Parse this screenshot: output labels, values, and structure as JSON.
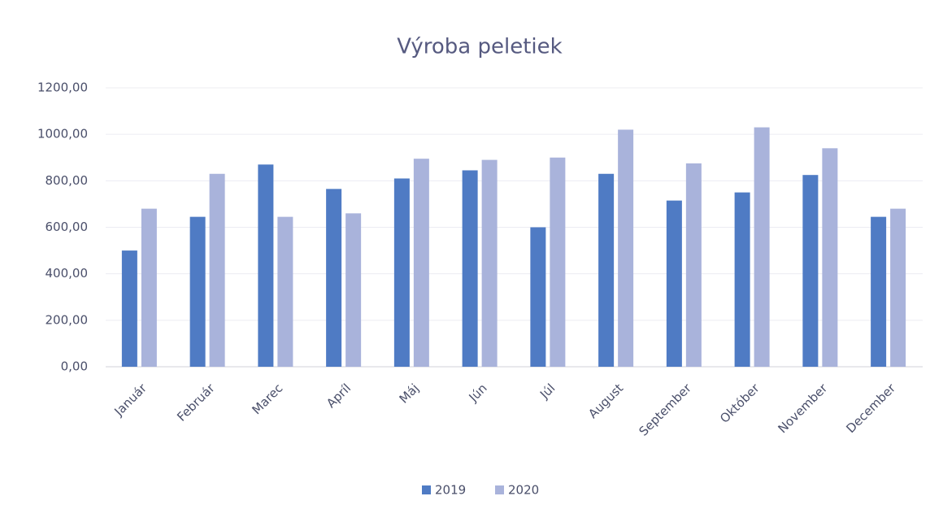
{
  "chart_data": {
    "type": "bar",
    "title": "Výroba peletiek",
    "categories": [
      "Január",
      "Február",
      "Marec",
      "Apríl",
      "Máj",
      "Jún",
      "Júl",
      "August",
      "September",
      "Október",
      "November",
      "December"
    ],
    "series": [
      {
        "name": "2019",
        "color": "#4f7bc4",
        "values": [
          500,
          645,
          870,
          765,
          810,
          845,
          600,
          830,
          715,
          750,
          825,
          645
        ]
      },
      {
        "name": "2020",
        "color": "#a9b3db",
        "values": [
          680,
          830,
          645,
          660,
          895,
          890,
          900,
          1020,
          875,
          1030,
          940,
          680
        ]
      }
    ],
    "ylim": [
      0,
      1200
    ],
    "yticks": [
      {
        "value": 0,
        "label": "0,00"
      },
      {
        "value": 200,
        "label": "200,00"
      },
      {
        "value": 400,
        "label": "400,00"
      },
      {
        "value": 600,
        "label": "600,00"
      },
      {
        "value": 800,
        "label": "800,00"
      },
      {
        "value": 1000,
        "label": "1000,00"
      },
      {
        "value": 1200,
        "label": "1200,00"
      }
    ],
    "grid": true,
    "legend": "bottom"
  }
}
